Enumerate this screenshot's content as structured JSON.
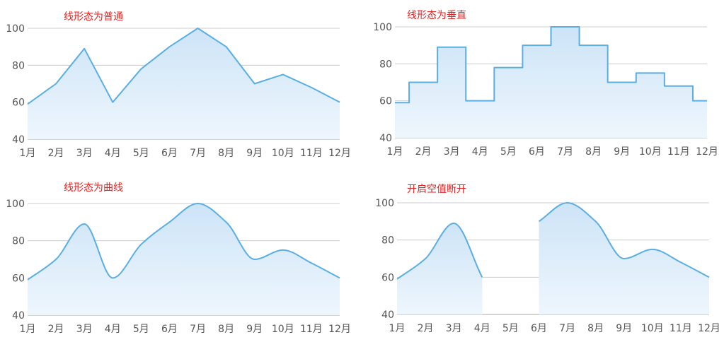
{
  "colors": {
    "line": "#5aaee4",
    "area_top": "#cde4f7",
    "area_bottom": "#eef6fd",
    "title": "#e02424",
    "grid": "#cccccc"
  },
  "chart_data": [
    {
      "type": "area",
      "title": "线形态为普通",
      "categories": [
        "1月",
        "2月",
        "3月",
        "4月",
        "5月",
        "6月",
        "7月",
        "8月",
        "9月",
        "10月",
        "11月",
        "12月"
      ],
      "values": [
        59,
        70,
        89,
        60,
        78,
        90,
        100,
        90,
        70,
        75,
        68,
        60
      ],
      "ylim": [
        40,
        100
      ],
      "yticks": [
        40,
        60,
        80,
        100
      ],
      "interpolation": "linear",
      "grid": true
    },
    {
      "type": "area",
      "title": "线形态为垂直",
      "categories": [
        "1月",
        "2月",
        "3月",
        "4月",
        "5月",
        "6月",
        "7月",
        "8月",
        "9月",
        "10月",
        "11月",
        "12月"
      ],
      "values": [
        59,
        70,
        89,
        60,
        78,
        90,
        100,
        90,
        70,
        75,
        68,
        60
      ],
      "ylim": [
        40,
        100
      ],
      "yticks": [
        40,
        60,
        80,
        100
      ],
      "interpolation": "step",
      "grid": true
    },
    {
      "type": "area",
      "title": "线形态为曲线",
      "categories": [
        "1月",
        "2月",
        "3月",
        "4月",
        "5月",
        "6月",
        "7月",
        "8月",
        "9月",
        "10月",
        "11月",
        "12月"
      ],
      "values": [
        59,
        70,
        89,
        60,
        78,
        90,
        100,
        90,
        70,
        75,
        68,
        60
      ],
      "ylim": [
        40,
        100
      ],
      "yticks": [
        40,
        60,
        80,
        100
      ],
      "interpolation": "smooth",
      "grid": true
    },
    {
      "type": "area",
      "title": "开启空值断开",
      "categories": [
        "1月",
        "2月",
        "3月",
        "4月",
        "5月",
        "6月",
        "7月",
        "8月",
        "9月",
        "10月",
        "11月",
        "12月"
      ],
      "values": [
        59,
        70,
        89,
        60,
        null,
        90,
        100,
        90,
        70,
        75,
        68,
        60
      ],
      "ylim": [
        40,
        100
      ],
      "yticks": [
        40,
        60,
        80,
        100
      ],
      "interpolation": "smooth",
      "grid": true,
      "break_on_null": true
    }
  ]
}
